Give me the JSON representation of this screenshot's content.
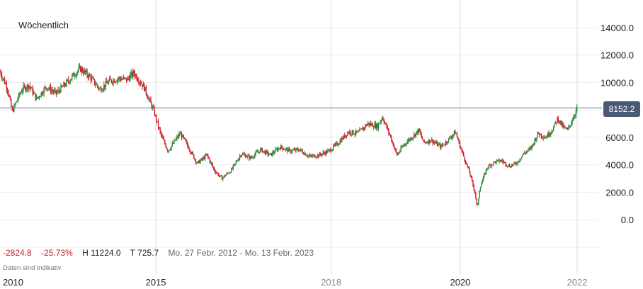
{
  "period_label": "Wöchentlich",
  "stats": {
    "change_abs": "-2824.8",
    "change_pct": "-25.73%",
    "high": "H 11224.0",
    "low": "T 725.7",
    "date_range": "Mo. 27 Febr. 2012 - Mo. 13 Febr. 2023"
  },
  "note": "Daten sind indikativ",
  "colors": {
    "up": "#2e8b3a",
    "down": "#d0202b",
    "price_tag": "#4a5a73",
    "grid": "#ececec"
  },
  "chart_data": {
    "type": "candlestick",
    "current_price": 8152.2,
    "current_price_label": "8152.2",
    "ylim": [
      -1000,
      15000
    ],
    "y_ticks": [
      "14000.0",
      "12000.0",
      "10000.0",
      "8000.0",
      "6000.0",
      "4000.0",
      "2000.0",
      "0.0"
    ],
    "y_tick_values": [
      14000,
      12000,
      10000,
      8000,
      6000,
      4000,
      2000,
      0
    ],
    "x_ticks": [
      {
        "label": "2010",
        "t": 2012.15
      },
      {
        "label": "2015",
        "t": 2015.35
      },
      {
        "label": "2018",
        "t": 2018.95
      },
      {
        "label": "2020",
        "t": 2021.6
      },
      {
        "label": "2022",
        "t": 2024.0
      }
    ],
    "vertical_lines_t": [
      2015.35,
      2018.95,
      2021.6,
      2024.0
    ],
    "x_range": [
      2012.15,
      2025.25
    ],
    "series": [
      {
        "t": 2012.15,
        "y": 10800
      },
      {
        "t": 2012.3,
        "y": 9600
      },
      {
        "t": 2012.4,
        "y": 7900
      },
      {
        "t": 2012.6,
        "y": 9500
      },
      {
        "t": 2012.75,
        "y": 9800
      },
      {
        "t": 2012.9,
        "y": 8800
      },
      {
        "t": 2013.1,
        "y": 9700
      },
      {
        "t": 2013.3,
        "y": 9200
      },
      {
        "t": 2013.5,
        "y": 9900
      },
      {
        "t": 2013.7,
        "y": 10700
      },
      {
        "t": 2013.8,
        "y": 11000
      },
      {
        "t": 2014.0,
        "y": 10400
      },
      {
        "t": 2014.2,
        "y": 9500
      },
      {
        "t": 2014.4,
        "y": 10100
      },
      {
        "t": 2014.6,
        "y": 10300
      },
      {
        "t": 2014.75,
        "y": 10200
      },
      {
        "t": 2014.9,
        "y": 10700
      },
      {
        "t": 2015.1,
        "y": 9700
      },
      {
        "t": 2015.3,
        "y": 8000
      },
      {
        "t": 2015.45,
        "y": 6200
      },
      {
        "t": 2015.6,
        "y": 5000
      },
      {
        "t": 2015.75,
        "y": 5800
      },
      {
        "t": 2015.85,
        "y": 6300
      },
      {
        "t": 2016.0,
        "y": 5400
      },
      {
        "t": 2016.2,
        "y": 4100
      },
      {
        "t": 2016.4,
        "y": 4700
      },
      {
        "t": 2016.55,
        "y": 3600
      },
      {
        "t": 2016.7,
        "y": 3000
      },
      {
        "t": 2016.9,
        "y": 3600
      },
      {
        "t": 2017.1,
        "y": 4800
      },
      {
        "t": 2017.3,
        "y": 4500
      },
      {
        "t": 2017.5,
        "y": 5100
      },
      {
        "t": 2017.7,
        "y": 4700
      },
      {
        "t": 2017.9,
        "y": 5300
      },
      {
        "t": 2018.1,
        "y": 5000
      },
      {
        "t": 2018.3,
        "y": 5100
      },
      {
        "t": 2018.5,
        "y": 4600
      },
      {
        "t": 2018.7,
        "y": 4700
      },
      {
        "t": 2018.9,
        "y": 5000
      },
      {
        "t": 2019.1,
        "y": 5600
      },
      {
        "t": 2019.3,
        "y": 6400
      },
      {
        "t": 2019.5,
        "y": 6300
      },
      {
        "t": 2019.7,
        "y": 7000
      },
      {
        "t": 2019.9,
        "y": 6800
      },
      {
        "t": 2020.0,
        "y": 7500
      },
      {
        "t": 2020.15,
        "y": 6200
      },
      {
        "t": 2020.3,
        "y": 4700
      },
      {
        "t": 2020.45,
        "y": 5500
      },
      {
        "t": 2020.6,
        "y": 6000
      },
      {
        "t": 2020.75,
        "y": 6500
      },
      {
        "t": 2020.85,
        "y": 5600
      },
      {
        "t": 2021.0,
        "y": 5800
      },
      {
        "t": 2021.2,
        "y": 5300
      },
      {
        "t": 2021.35,
        "y": 5800
      },
      {
        "t": 2021.5,
        "y": 6400
      },
      {
        "t": 2021.6,
        "y": 5300
      },
      {
        "t": 2021.7,
        "y": 4300
      },
      {
        "t": 2021.8,
        "y": 3300
      },
      {
        "t": 2021.9,
        "y": 2000
      },
      {
        "t": 2021.95,
        "y": 800
      },
      {
        "t": 2022.0,
        "y": 2300
      },
      {
        "t": 2022.15,
        "y": 3800
      },
      {
        "t": 2022.3,
        "y": 4200
      },
      {
        "t": 2022.45,
        "y": 4300
      },
      {
        "t": 2022.6,
        "y": 3900
      },
      {
        "t": 2022.75,
        "y": 4100
      },
      {
        "t": 2022.9,
        "y": 4800
      },
      {
        "t": 2023.05,
        "y": 5200
      },
      {
        "t": 2023.2,
        "y": 6300
      },
      {
        "t": 2023.35,
        "y": 6000
      },
      {
        "t": 2023.5,
        "y": 6600
      },
      {
        "t": 2023.6,
        "y": 7400
      },
      {
        "t": 2023.7,
        "y": 6800
      },
      {
        "t": 2023.8,
        "y": 6500
      },
      {
        "t": 2023.9,
        "y": 7300
      },
      {
        "t": 2024.0,
        "y": 8152
      }
    ]
  }
}
